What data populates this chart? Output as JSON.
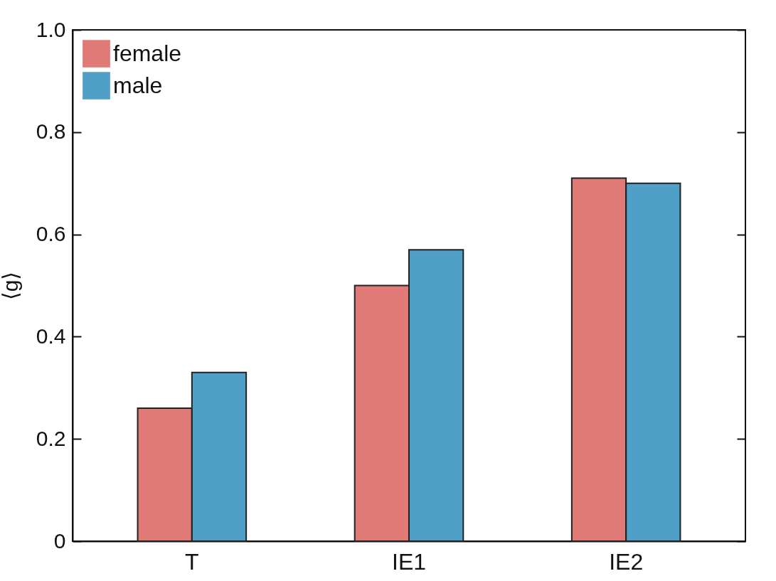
{
  "chart_data": {
    "type": "bar",
    "ylabel": "⟨g⟩",
    "categories": [
      "T",
      "IE1",
      "IE2"
    ],
    "series": [
      {
        "name": "female",
        "color": "#e07a76",
        "values": [
          0.26,
          0.5,
          0.71
        ]
      },
      {
        "name": "male",
        "color": "#4f9fc6",
        "values": [
          0.33,
          0.57,
          0.7
        ]
      }
    ],
    "ylim": [
      0,
      1
    ],
    "yticks": [
      0,
      0.2,
      0.4,
      0.6,
      0.8,
      {
        "value": 1,
        "label": "1.0"
      }
    ],
    "grid": false,
    "legend": "top left"
  }
}
